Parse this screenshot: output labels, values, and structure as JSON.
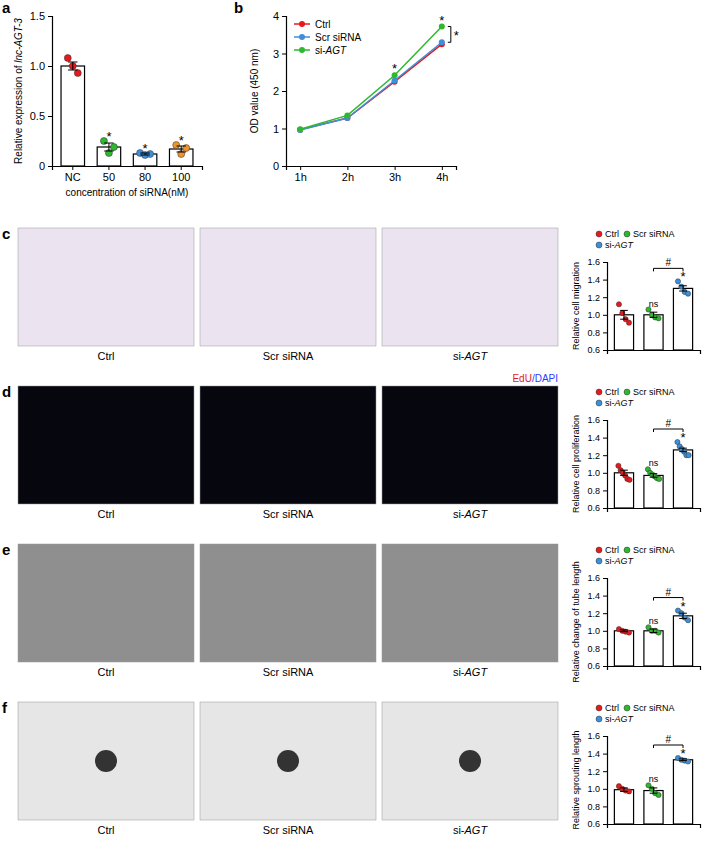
{
  "chart_data": [
    {
      "panel": "a",
      "type": "bar",
      "y_label": "Relative expression of lnc-AGT-3",
      "x_label": "concentration of siRNA(nM)",
      "categories": [
        "NC",
        "50",
        "80",
        "100"
      ],
      "values": [
        1.0,
        0.19,
        0.12,
        0.17
      ],
      "errors": [
        0.04,
        0.04,
        0.01,
        0.03
      ],
      "points": [
        [
          1.08,
          1.0,
          0.93
        ],
        [
          0.25,
          0.13,
          0.19
        ],
        [
          0.13,
          0.11,
          0.12
        ],
        [
          0.21,
          0.12,
          0.18
        ]
      ],
      "colors": [
        "#e41a1c",
        "#2eb82e",
        "#3d8fd9",
        "#f0932b"
      ],
      "significance": [
        null,
        "*",
        "*",
        "*"
      ],
      "ylim": [
        0,
        1.5
      ],
      "yticks": [
        0,
        0.5,
        {
          "value": 1,
          "label": "1.0"
        },
        1.5
      ]
    },
    {
      "panel": "b",
      "type": "line",
      "y_label": "OD value (450 nm)",
      "categories": [
        "1h",
        "2h",
        "3h",
        "4h"
      ],
      "series": [
        {
          "name": "Ctrl",
          "color": "#e41a1c",
          "values": [
            0.97,
            1.28,
            2.25,
            3.25
          ]
        },
        {
          "name": "Scr siRNA",
          "color": "#3d8fd9",
          "values": [
            0.96,
            1.28,
            2.28,
            3.3
          ]
        },
        {
          "name": "si-AGT",
          "color": "#2eb82e",
          "values": [
            0.98,
            1.35,
            2.42,
            3.72
          ]
        }
      ],
      "marker": "circle",
      "ylim": [
        0,
        4
      ],
      "yticks": [
        0,
        1,
        2,
        3,
        4
      ],
      "legend": "top-left",
      "annotations": [
        {
          "text": "*",
          "category": "3h"
        },
        {
          "text": "*",
          "category": "4h"
        },
        {
          "text": "*",
          "category": "4h",
          "between": [
            "Scr siRNA",
            "si-AGT"
          ]
        }
      ]
    },
    {
      "panel": "c",
      "type": "bar",
      "y_label": "Relative cell migration",
      "image_captions": [
        "Ctrl",
        "Scr siRNA",
        "si-AGT"
      ],
      "categories": [
        "Ctrl",
        "Scr siRNA",
        "si-AGT"
      ],
      "colors": [
        "#e41a1c",
        "#2eb82e",
        "#3d8fd9"
      ],
      "values": [
        1.0,
        1.0,
        1.3
      ],
      "errors": [
        0.05,
        0.03,
        0.03
      ],
      "points": [
        [
          1.12,
          1.02,
          0.95,
          0.91
        ],
        [
          1.06,
          1.0,
          0.97,
          0.96
        ],
        [
          1.38,
          1.32,
          1.26,
          1.24
        ]
      ],
      "significance": [
        null,
        "ns",
        "*"
      ],
      "comparison": {
        "text": "#",
        "between": [
          "Scr siRNA",
          "si-AGT"
        ]
      },
      "ylim": [
        0.6,
        1.6
      ],
      "yticks": [
        0.6,
        0.8,
        {
          "value": 1,
          "label": "1.0"
        },
        1.2,
        1.4,
        1.6
      ],
      "legend": "top",
      "tick_labels": "y"
    },
    {
      "panel": "d",
      "type": "bar",
      "y_label": "Relative cell proliferation",
      "image_captions": [
        "Ctrl",
        "Scr siRNA",
        "si-AGT"
      ],
      "image_label": [
        "EdU",
        "/DAPI"
      ],
      "categories": [
        "Ctrl",
        "Scr siRNA",
        "si-AGT"
      ],
      "colors": [
        "#e41a1c",
        "#2eb82e",
        "#3d8fd9"
      ],
      "values": [
        1.0,
        0.97,
        1.26
      ],
      "errors": [
        0.03,
        0.02,
        0.02
      ],
      "points": [
        [
          1.08,
          1.03,
          1.0,
          0.97,
          0.93,
          0.92
        ],
        [
          1.04,
          1.0,
          0.98,
          0.96,
          0.94,
          0.93
        ],
        [
          1.35,
          1.3,
          1.27,
          1.24,
          1.2,
          1.2
        ]
      ],
      "significance": [
        null,
        "ns",
        "*"
      ],
      "comparison": {
        "text": "#",
        "between": [
          "Scr siRNA",
          "si-AGT"
        ]
      },
      "ylim": [
        0.6,
        1.6
      ],
      "yticks": [
        0.6,
        0.8,
        {
          "value": 1,
          "label": "1.0"
        },
        1.2,
        1.4,
        1.6
      ],
      "legend": "top",
      "tick_labels": "y"
    },
    {
      "panel": "e",
      "type": "bar",
      "y_label": "Relative change of tube length",
      "image_captions": [
        "Ctrl",
        "Scr siRNA",
        "si-AGT"
      ],
      "categories": [
        "Ctrl",
        "Scr siRNA",
        "si-AGT"
      ],
      "colors": [
        "#e41a1c",
        "#2eb82e",
        "#3d8fd9"
      ],
      "values": [
        1.0,
        1.0,
        1.17
      ],
      "errors": [
        0.01,
        0.02,
        0.03
      ],
      "points": [
        [
          1.02,
          1.0,
          0.99,
          0.98
        ],
        [
          1.04,
          1.0,
          1.0,
          0.98
        ],
        [
          1.23,
          1.2,
          1.15,
          1.12
        ]
      ],
      "significance": [
        null,
        "ns",
        "*"
      ],
      "comparison": {
        "text": "#",
        "between": [
          "Scr siRNA",
          "si-AGT"
        ]
      },
      "ylim": [
        0.6,
        1.6
      ],
      "yticks": [
        0.6,
        0.8,
        {
          "value": 1,
          "label": "1.0"
        },
        1.2,
        1.4,
        1.6
      ],
      "legend": "top",
      "tick_labels": "y"
    },
    {
      "panel": "f",
      "type": "bar",
      "y_label": "Relative sprouting length",
      "image_captions": [
        "Ctrl",
        "Scr siRNA",
        "si-AGT"
      ],
      "categories": [
        "Ctrl",
        "Scr siRNA",
        "si-AGT"
      ],
      "colors": [
        "#e41a1c",
        "#2eb82e",
        "#3d8fd9"
      ],
      "values": [
        0.99,
        0.98,
        1.33
      ],
      "errors": [
        0.02,
        0.03,
        0.01
      ],
      "points": [
        [
          1.03,
          1.0,
          0.98,
          0.97
        ],
        [
          1.04,
          1.0,
          0.95,
          0.93
        ],
        [
          1.35,
          1.33,
          1.32,
          1.31
        ]
      ],
      "significance": [
        null,
        "ns",
        "*"
      ],
      "comparison": {
        "text": "#",
        "between": [
          "Scr siRNA",
          "si-AGT"
        ]
      },
      "ylim": [
        0.6,
        1.6
      ],
      "yticks": [
        0.6,
        0.8,
        {
          "value": 1,
          "label": "1.0"
        },
        1.2,
        1.4,
        1.6
      ],
      "legend": "top",
      "tick_labels": "y"
    }
  ]
}
